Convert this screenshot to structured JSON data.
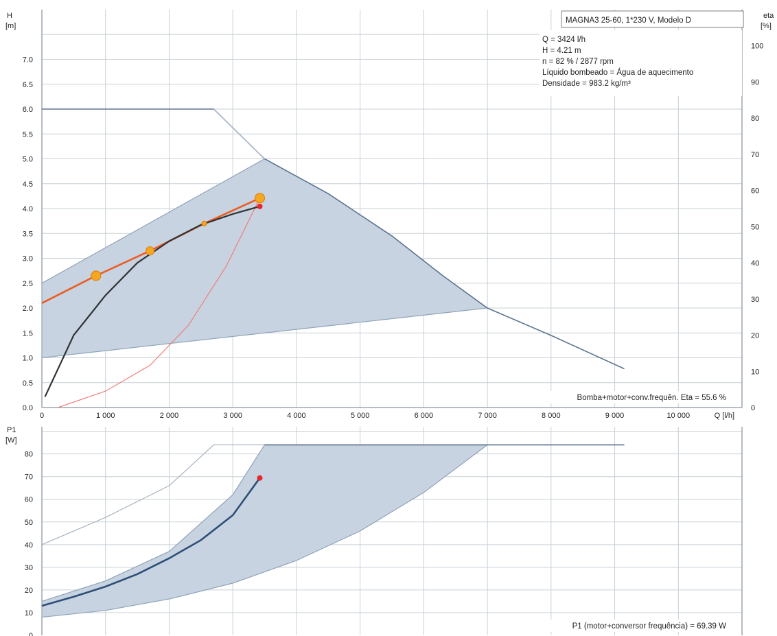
{
  "chart_data": [
    {
      "id": "head",
      "type": "line",
      "title": "MAGNA3 25-60, 1*230 V, Modelo D",
      "ylabel": "H",
      "ylabel_unit": "[m]",
      "y2label": "eta",
      "y2label_unit": "[%]",
      "xlabel": "Q [l/h]",
      "xlim": [
        0,
        11000
      ],
      "ylim": [
        0,
        8
      ],
      "y2lim": [
        0,
        110
      ],
      "x_ticks": [
        0,
        1000,
        2000,
        3000,
        4000,
        5000,
        6000,
        7000,
        8000,
        9000,
        10000
      ],
      "x_tick_labels": [
        "0",
        "1 000",
        "2 000",
        "3 000",
        "4 000",
        "5 000",
        "6 000",
        "7 000",
        "8 000",
        "9 000",
        "10 000"
      ],
      "y_ticks": [
        "0.0",
        "0.5",
        "1.0",
        "1.5",
        "2.0",
        "2.5",
        "3.0",
        "3.5",
        "4.0",
        "4.5",
        "5.0",
        "5.5",
        "6.0",
        "6.5",
        "7.0"
      ],
      "y2_ticks": [
        "0",
        "10",
        "20",
        "30",
        "40",
        "50",
        "60",
        "70",
        "80",
        "90",
        "100"
      ],
      "info_lines": [
        "Q = 3424 l/h",
        "H = 4.21 m",
        "n = 82 % / 2877 rpm",
        "Líquido bombeado = Água de aquecimento",
        "Densidade = 983.2 kg/m³"
      ],
      "footer_note": "Bomba+motor+conv.frequên. Eta = 55.6 %",
      "series": [
        {
          "role": "operating_region",
          "axis": "left",
          "points": [
            [
              0,
              2.5
            ],
            [
              3500,
              5.0
            ],
            [
              4500,
              4.3
            ],
            [
              5500,
              3.45
            ],
            [
              6300,
              2.65
            ],
            [
              7000,
              2.0
            ],
            [
              7000,
              2.0
            ],
            [
              0,
              1.0
            ]
          ]
        },
        {
          "role": "max_curve",
          "axis": "left",
          "points": [
            [
              0,
              6.0
            ],
            [
              2700,
              6.0
            ],
            [
              3500,
              5.0
            ],
            [
              4500,
              4.3
            ],
            [
              5500,
              3.45
            ],
            [
              6300,
              2.65
            ],
            [
              7000,
              2.0
            ],
            [
              8000,
              1.45
            ],
            [
              9150,
              0.78
            ]
          ]
        },
        {
          "role": "system_curve",
          "axis": "left",
          "points": [
            [
              250,
              0.0
            ],
            [
              1000,
              0.33
            ],
            [
              1700,
              0.85
            ],
            [
              2300,
              1.65
            ],
            [
              2900,
              2.85
            ],
            [
              3424,
              4.21
            ]
          ]
        },
        {
          "role": "control_curve",
          "axis": "left",
          "points": [
            [
              0,
              2.1
            ],
            [
              850,
              2.65
            ],
            [
              1700,
              3.15
            ],
            [
              2550,
              3.7
            ],
            [
              3424,
              4.21
            ]
          ]
        },
        {
          "role": "efficiency",
          "axis": "right",
          "points": [
            [
              50,
              3
            ],
            [
              500,
              20
            ],
            [
              1000,
              31
            ],
            [
              1500,
              40
            ],
            [
              2000,
              46
            ],
            [
              2500,
              50.5
            ],
            [
              3000,
              53.5
            ],
            [
              3424,
              55.6
            ]
          ]
        }
      ],
      "control_markers": [
        {
          "x": 850,
          "y": 2.65,
          "size": "large"
        },
        {
          "x": 1700,
          "y": 3.15,
          "size": "medium"
        },
        {
          "x": 2550,
          "y": 3.7,
          "size": "small"
        },
        {
          "x": 3424,
          "y": 4.21,
          "size": "large"
        }
      ],
      "duty_point_eta": {
        "x": 3424,
        "y": 55.6
      }
    },
    {
      "id": "power",
      "type": "line",
      "ylabel": "P1",
      "ylabel_unit": "[W]",
      "xlim": [
        0,
        11000
      ],
      "ylim": [
        0,
        92
      ],
      "y_ticks": [
        "0",
        "10",
        "20",
        "30",
        "40",
        "50",
        "60",
        "70",
        "80"
      ],
      "footer_note": "P1 (motor+conversor frequência) = 69.39 W",
      "series": [
        {
          "role": "operating_region",
          "points": [
            [
              0,
              15
            ],
            [
              1000,
              24
            ],
            [
              2000,
              37
            ],
            [
              3000,
              62
            ],
            [
              3500,
              84
            ],
            [
              7000,
              84
            ],
            [
              6000,
              63
            ],
            [
              5000,
              46
            ],
            [
              4000,
              33
            ],
            [
              3000,
              23
            ],
            [
              2000,
              16
            ],
            [
              1000,
              11
            ],
            [
              0,
              8
            ]
          ]
        },
        {
          "role": "max_curve",
          "points": [
            [
              0,
              40
            ],
            [
              1000,
              52
            ],
            [
              2000,
              66
            ],
            [
              2700,
              84
            ],
            [
              9150,
              84
            ]
          ]
        },
        {
          "role": "duty_curve",
          "points": [
            [
              0,
              13
            ],
            [
              500,
              17
            ],
            [
              1000,
              21.5
            ],
            [
              1500,
              27
            ],
            [
              2000,
              34
            ],
            [
              2500,
              42
            ],
            [
              3000,
              53
            ],
            [
              3424,
              69.39
            ]
          ]
        }
      ],
      "duty_point": {
        "x": 3424,
        "y": 69.39
      }
    }
  ]
}
